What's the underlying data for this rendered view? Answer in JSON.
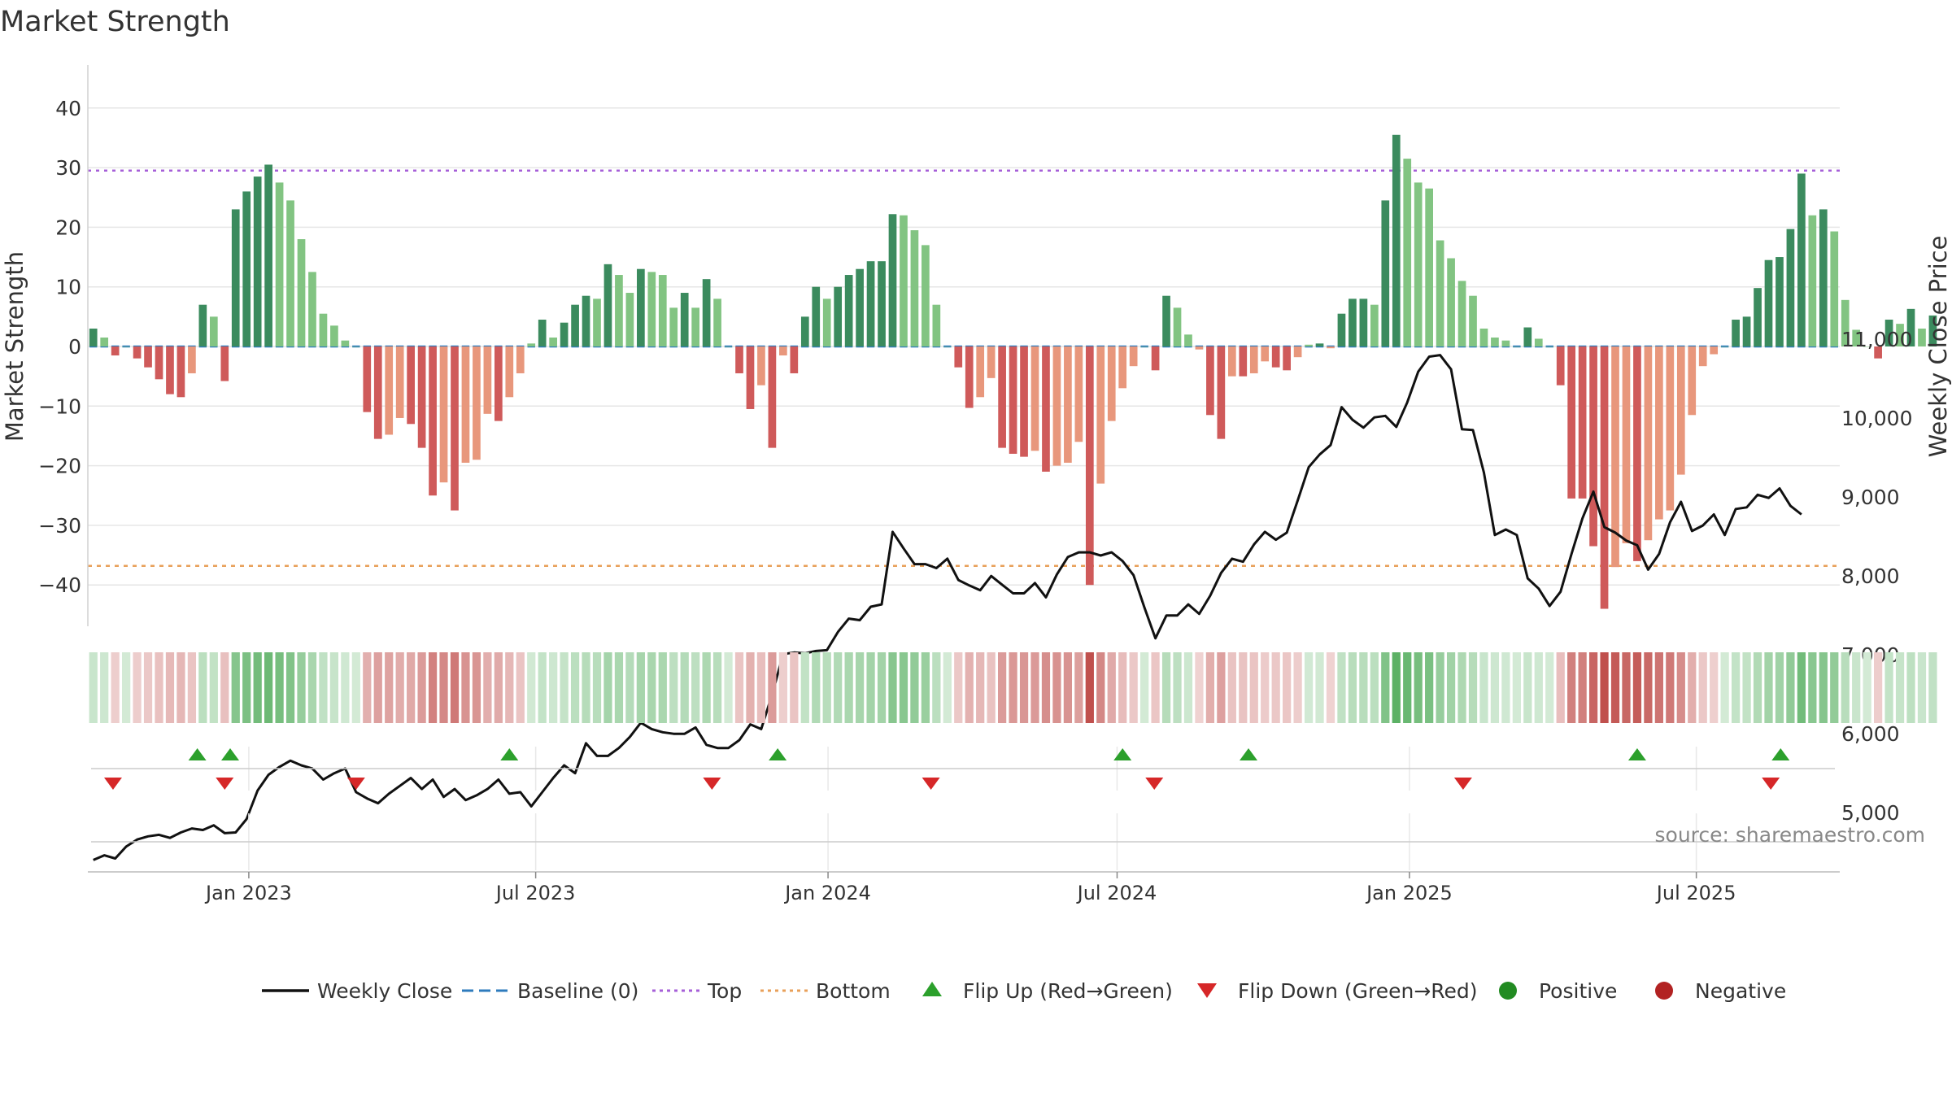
{
  "chart_data": {
    "type": "bar+line",
    "title": "Market Strength",
    "ylabel_left": "Market Strength",
    "ylabel_right": "Weekly Close Price",
    "left_ticks": [
      40,
      30,
      20,
      10,
      0,
      -10,
      -20,
      -30,
      -40
    ],
    "left_tick_labels": [
      "40",
      "30",
      "20",
      "10",
      "0",
      "−10",
      "−20",
      "−30",
      "−40"
    ],
    "left_ylim": [
      -47,
      48
    ],
    "right_ticks": [
      11000,
      10000,
      9000,
      8000,
      7000,
      6000,
      5000
    ],
    "right_tick_labels": [
      "11,000",
      "10,000",
      "9,000",
      "8,000",
      "7,000",
      "6,000",
      "5,000"
    ],
    "top_level": 29.5,
    "bottom_level": -36.8,
    "x_tick_labels": [
      "Jan 2023",
      "Jul 2023",
      "Jan 2024",
      "Jul 2024",
      "Jan 2025",
      "Jul 2025"
    ],
    "x_tick_weeks": [
      14.7,
      40.9,
      67.6,
      94.0,
      120.7,
      146.9
    ],
    "bar_weeks_total": 160,
    "strength": [
      3,
      1.5,
      -1.5,
      0,
      -2,
      -3.5,
      -5.5,
      -8,
      -8.5,
      -4.5,
      7,
      5,
      -5.8,
      23,
      26,
      28.5,
      30.5,
      27.5,
      24.5,
      18,
      12.5,
      5.5,
      3.5,
      1,
      0,
      -11,
      -15.5,
      -14.8,
      -12,
      -13,
      -17,
      -25,
      -22.8,
      -27.5,
      -19.5,
      -19,
      -11.3,
      -12.5,
      -8.5,
      -4.5,
      0.5,
      4.5,
      1.5,
      4,
      7,
      8.5,
      8,
      13.8,
      12,
      9,
      13,
      12.5,
      12,
      6.5,
      9,
      6.5,
      11.3,
      8,
      0,
      -4.5,
      -10.5,
      -6.5,
      -17,
      -1.5,
      -4.5,
      5,
      10,
      8,
      10,
      12,
      13,
      14.3,
      14.3,
      22.2,
      22,
      19.5,
      17,
      7,
      0,
      -3.5,
      -10.3,
      -8.5,
      -5.3,
      -17,
      -18,
      -18.5,
      -17.5,
      -21,
      -20,
      -19.5,
      -16,
      -40,
      -23,
      -12.5,
      -7,
      -3.3,
      0,
      -4,
      8.5,
      6.5,
      2,
      -0.5,
      -11.5,
      -15.5,
      -5,
      -5,
      -4.5,
      -2.5,
      -3.5,
      -4,
      -1.8,
      0.3,
      0.5,
      -0.3,
      5.5,
      8,
      8,
      7,
      24.5,
      35.5,
      31.5,
      27.5,
      26.5,
      17.8,
      14.8,
      11,
      8.5,
      3,
      1.5,
      1,
      0,
      3.2,
      1.3,
      0,
      -6.5,
      -25.5,
      -25.5,
      -33.5,
      -44,
      -37,
      -33,
      -36,
      -32.5,
      -29,
      -27.5,
      -21.5,
      -11.5,
      -3.3,
      -1.3,
      0,
      4.5,
      5,
      9.8,
      14.5,
      15,
      19.7,
      29,
      22,
      23,
      19.3,
      7.8,
      2.8,
      0,
      -2,
      4.5,
      3.8,
      6.3,
      3,
      5.2
    ],
    "weekly_close": [
      4400,
      4460,
      4420,
      4570,
      4660,
      4700,
      4720,
      4680,
      4750,
      4800,
      4780,
      4840,
      4740,
      4750,
      4920,
      5280,
      5480,
      5580,
      5660,
      5600,
      5560,
      5420,
      5500,
      5560,
      5260,
      5180,
      5120,
      5240,
      5340,
      5440,
      5300,
      5420,
      5200,
      5300,
      5160,
      5220,
      5300,
      5420,
      5240,
      5260,
      5080,
      5260,
      5440,
      5600,
      5500,
      5880,
      5720,
      5720,
      5820,
      5960,
      6140,
      6060,
      6020,
      6000,
      6000,
      6080,
      5860,
      5820,
      5820,
      5920,
      6120,
      6060,
      6500,
      7010,
      7030,
      7020,
      7050,
      7060,
      7290,
      7460,
      7440,
      7610,
      7640,
      8560,
      8350,
      8150,
      8150,
      8100,
      8220,
      7950,
      7880,
      7820,
      8000,
      7890,
      7780,
      7780,
      7910,
      7730,
      8020,
      8240,
      8300,
      8300,
      8260,
      8300,
      8190,
      8010,
      7600,
      7210,
      7500,
      7500,
      7640,
      7520,
      7750,
      8040,
      8220,
      8180,
      8400,
      8560,
      8460,
      8550,
      8960,
      9380,
      9540,
      9660,
      10140,
      9980,
      9880,
      10010,
      10030,
      9890,
      10200,
      10590,
      10780,
      10800,
      10620,
      9860,
      9850,
      9310,
      8520,
      8590,
      8520,
      7970,
      7840,
      7620,
      7800,
      8280,
      8730,
      9070,
      8620,
      8550,
      8450,
      8390,
      8080,
      8280,
      8680,
      8940,
      8570,
      8640,
      8780,
      8520,
      8850,
      8870,
      9030,
      8990,
      9110,
      8890,
      8780
    ],
    "flip_up_weeks": [
      10,
      13,
      38.5,
      63,
      94.5,
      106,
      141.5,
      154.6
    ],
    "flip_down_weeks": [
      2.3,
      12.5,
      24.5,
      57,
      77,
      97.4,
      125.6,
      153.7
    ],
    "colors": {
      "pos_strong": "#3b8b5e",
      "pos_weak": "#82c482",
      "neg_strong": "#cf5a5a",
      "neg_weak": "#e8977c",
      "line": "#111111",
      "baseline": "#2e7bbd",
      "top": "#a65fd8",
      "bottom": "#e8a05a",
      "flip_up": "#2ca02c",
      "flip_down": "#d62728",
      "positive_dot": "#228b22",
      "negative_dot": "#b22222",
      "grid": "#e6e6e6"
    },
    "legend": [
      {
        "label": "Weekly Close",
        "kind": "line"
      },
      {
        "label": "Baseline (0)",
        "kind": "dash"
      },
      {
        "label": "Top",
        "kind": "dot-purple"
      },
      {
        "label": "Bottom",
        "kind": "dot-orange"
      },
      {
        "label": "Flip Up (Red→Green)",
        "kind": "tri-up"
      },
      {
        "label": "Flip Down (Green→Red)",
        "kind": "tri-down"
      },
      {
        "label": "Positive",
        "kind": "circle-pos"
      },
      {
        "label": "Negative",
        "kind": "circle-neg"
      }
    ],
    "source": "source: sharemaestro.com"
  }
}
